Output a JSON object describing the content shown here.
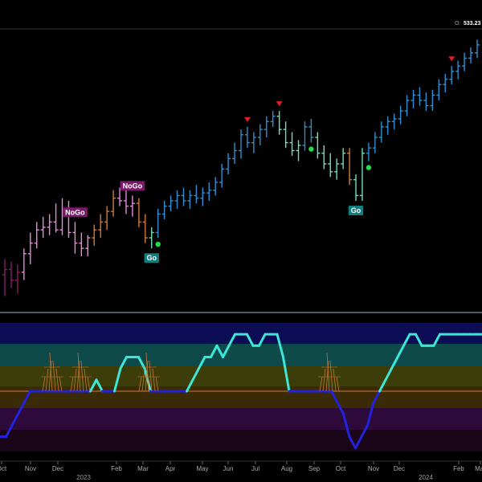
{
  "header": {
    "ohlc_label": "O:",
    "ohlc_value": "533.23"
  },
  "colors": {
    "background": "#000000",
    "go_strong": "#2f8fd0",
    "go_weak": "#6fe0b4",
    "nogo_weak": "#d07a36",
    "nogo_strong": "#e58ad6",
    "nogo_deep": "#8a1a6a",
    "oscillator_high": "#3ee6d6",
    "oscillator_low": "#2222dd",
    "zero_line": "#d07a36",
    "buy_dot": "#22dd44",
    "sell_triangle": "#e02020",
    "label_nogo_bg": "#7a1a6a",
    "label_go_bg": "#137d7d"
  },
  "chart_data": {
    "type": "bar",
    "x_labels": [
      "Oct",
      "Nov",
      "Dec",
      "Feb",
      "Mar",
      "Apr",
      "May",
      "Jun",
      "Jul",
      "Aug",
      "Sep",
      "Oct",
      "Nov",
      "Dec",
      "Feb",
      "Mar"
    ],
    "year_labels": [
      "2023",
      "2024"
    ],
    "price_bars": [
      {
        "o": 0.1,
        "h": 0.16,
        "l": 0.02,
        "c": 0.12,
        "color": "nogo_deep"
      },
      {
        "o": 0.12,
        "h": 0.15,
        "l": 0.05,
        "c": 0.08,
        "color": "nogo_deep"
      },
      {
        "o": 0.08,
        "h": 0.14,
        "l": 0.03,
        "c": 0.11,
        "color": "nogo_deep"
      },
      {
        "o": 0.11,
        "h": 0.2,
        "l": 0.08,
        "c": 0.18,
        "color": "nogo_strong"
      },
      {
        "o": 0.18,
        "h": 0.26,
        "l": 0.14,
        "c": 0.22,
        "color": "nogo_strong"
      },
      {
        "o": 0.22,
        "h": 0.3,
        "l": 0.2,
        "c": 0.27,
        "color": "nogo_strong"
      },
      {
        "o": 0.27,
        "h": 0.32,
        "l": 0.24,
        "c": 0.28,
        "color": "nogo_strong"
      },
      {
        "o": 0.28,
        "h": 0.33,
        "l": 0.25,
        "c": 0.3,
        "color": "nogo_strong"
      },
      {
        "o": 0.3,
        "h": 0.37,
        "l": 0.26,
        "c": 0.27,
        "color": "nogo_strong"
      },
      {
        "o": 0.27,
        "h": 0.39,
        "l": 0.25,
        "c": 0.33,
        "color": "nogo_strong"
      },
      {
        "o": 0.33,
        "h": 0.38,
        "l": 0.24,
        "c": 0.26,
        "color": "nogo_strong"
      },
      {
        "o": 0.26,
        "h": 0.3,
        "l": 0.18,
        "c": 0.22,
        "color": "nogo_strong"
      },
      {
        "o": 0.22,
        "h": 0.26,
        "l": 0.17,
        "c": 0.2,
        "color": "nogo_strong"
      },
      {
        "o": 0.2,
        "h": 0.25,
        "l": 0.17,
        "c": 0.24,
        "color": "nogo_strong"
      },
      {
        "o": 0.24,
        "h": 0.29,
        "l": 0.21,
        "c": 0.27,
        "color": "nogo_weak"
      },
      {
        "o": 0.27,
        "h": 0.33,
        "l": 0.24,
        "c": 0.3,
        "color": "nogo_weak"
      },
      {
        "o": 0.3,
        "h": 0.36,
        "l": 0.27,
        "c": 0.34,
        "color": "nogo_weak"
      },
      {
        "o": 0.34,
        "h": 0.42,
        "l": 0.32,
        "c": 0.39,
        "color": "nogo_weak"
      },
      {
        "o": 0.39,
        "h": 0.43,
        "l": 0.36,
        "c": 0.38,
        "color": "nogo_strong"
      },
      {
        "o": 0.38,
        "h": 0.42,
        "l": 0.33,
        "c": 0.36,
        "color": "nogo_strong"
      },
      {
        "o": 0.36,
        "h": 0.4,
        "l": 0.32,
        "c": 0.37,
        "color": "nogo_strong"
      },
      {
        "o": 0.37,
        "h": 0.39,
        "l": 0.28,
        "c": 0.3,
        "color": "nogo_weak"
      },
      {
        "o": 0.3,
        "h": 0.33,
        "l": 0.22,
        "c": 0.24,
        "color": "nogo_weak"
      },
      {
        "o": 0.24,
        "h": 0.28,
        "l": 0.2,
        "c": 0.26,
        "color": "go_weak"
      },
      {
        "o": 0.26,
        "h": 0.35,
        "l": 0.24,
        "c": 0.33,
        "color": "go_strong"
      },
      {
        "o": 0.33,
        "h": 0.38,
        "l": 0.31,
        "c": 0.36,
        "color": "go_strong"
      },
      {
        "o": 0.36,
        "h": 0.4,
        "l": 0.34,
        "c": 0.38,
        "color": "go_strong"
      },
      {
        "o": 0.38,
        "h": 0.42,
        "l": 0.35,
        "c": 0.4,
        "color": "go_strong"
      },
      {
        "o": 0.4,
        "h": 0.43,
        "l": 0.36,
        "c": 0.38,
        "color": "go_strong"
      },
      {
        "o": 0.38,
        "h": 0.42,
        "l": 0.35,
        "c": 0.4,
        "color": "go_strong"
      },
      {
        "o": 0.4,
        "h": 0.44,
        "l": 0.37,
        "c": 0.39,
        "color": "go_strong"
      },
      {
        "o": 0.39,
        "h": 0.43,
        "l": 0.36,
        "c": 0.41,
        "color": "go_strong"
      },
      {
        "o": 0.41,
        "h": 0.45,
        "l": 0.38,
        "c": 0.42,
        "color": "go_strong"
      },
      {
        "o": 0.42,
        "h": 0.47,
        "l": 0.4,
        "c": 0.45,
        "color": "go_strong"
      },
      {
        "o": 0.45,
        "h": 0.52,
        "l": 0.43,
        "c": 0.5,
        "color": "go_strong"
      },
      {
        "o": 0.5,
        "h": 0.56,
        "l": 0.48,
        "c": 0.54,
        "color": "go_strong"
      },
      {
        "o": 0.54,
        "h": 0.6,
        "l": 0.52,
        "c": 0.57,
        "color": "go_strong"
      },
      {
        "o": 0.57,
        "h": 0.65,
        "l": 0.54,
        "c": 0.63,
        "color": "go_strong"
      },
      {
        "o": 0.63,
        "h": 0.66,
        "l": 0.58,
        "c": 0.6,
        "color": "go_strong"
      },
      {
        "o": 0.6,
        "h": 0.64,
        "l": 0.56,
        "c": 0.62,
        "color": "go_strong"
      },
      {
        "o": 0.62,
        "h": 0.67,
        "l": 0.59,
        "c": 0.65,
        "color": "go_strong"
      },
      {
        "o": 0.65,
        "h": 0.7,
        "l": 0.62,
        "c": 0.68,
        "color": "go_strong"
      },
      {
        "o": 0.68,
        "h": 0.72,
        "l": 0.66,
        "c": 0.7,
        "color": "go_strong"
      },
      {
        "o": 0.7,
        "h": 0.72,
        "l": 0.63,
        "c": 0.65,
        "color": "go_weak"
      },
      {
        "o": 0.65,
        "h": 0.68,
        "l": 0.58,
        "c": 0.6,
        "color": "go_weak"
      },
      {
        "o": 0.6,
        "h": 0.64,
        "l": 0.55,
        "c": 0.57,
        "color": "go_weak"
      },
      {
        "o": 0.57,
        "h": 0.61,
        "l": 0.53,
        "c": 0.59,
        "color": "go_weak"
      },
      {
        "o": 0.59,
        "h": 0.68,
        "l": 0.57,
        "c": 0.66,
        "color": "go_strong"
      },
      {
        "o": 0.66,
        "h": 0.69,
        "l": 0.6,
        "c": 0.62,
        "color": "go_strong"
      },
      {
        "o": 0.62,
        "h": 0.64,
        "l": 0.54,
        "c": 0.56,
        "color": "go_weak"
      },
      {
        "o": 0.56,
        "h": 0.59,
        "l": 0.5,
        "c": 0.52,
        "color": "go_weak"
      },
      {
        "o": 0.52,
        "h": 0.56,
        "l": 0.47,
        "c": 0.49,
        "color": "go_weak"
      },
      {
        "o": 0.49,
        "h": 0.54,
        "l": 0.46,
        "c": 0.52,
        "color": "go_weak"
      },
      {
        "o": 0.52,
        "h": 0.58,
        "l": 0.5,
        "c": 0.56,
        "color": "go_weak"
      },
      {
        "o": 0.56,
        "h": 0.58,
        "l": 0.44,
        "c": 0.46,
        "color": "nogo_weak"
      },
      {
        "o": 0.46,
        "h": 0.48,
        "l": 0.38,
        "c": 0.4,
        "color": "go_weak"
      },
      {
        "o": 0.4,
        "h": 0.58,
        "l": 0.38,
        "c": 0.56,
        "color": "go_weak"
      },
      {
        "o": 0.56,
        "h": 0.6,
        "l": 0.53,
        "c": 0.58,
        "color": "go_strong"
      },
      {
        "o": 0.58,
        "h": 0.64,
        "l": 0.56,
        "c": 0.62,
        "color": "go_strong"
      },
      {
        "o": 0.62,
        "h": 0.68,
        "l": 0.6,
        "c": 0.66,
        "color": "go_strong"
      },
      {
        "o": 0.66,
        "h": 0.7,
        "l": 0.63,
        "c": 0.68,
        "color": "go_strong"
      },
      {
        "o": 0.68,
        "h": 0.71,
        "l": 0.65,
        "c": 0.69,
        "color": "go_strong"
      },
      {
        "o": 0.69,
        "h": 0.74,
        "l": 0.67,
        "c": 0.72,
        "color": "go_strong"
      },
      {
        "o": 0.72,
        "h": 0.78,
        "l": 0.7,
        "c": 0.76,
        "color": "go_strong"
      },
      {
        "o": 0.76,
        "h": 0.8,
        "l": 0.73,
        "c": 0.78,
        "color": "go_strong"
      },
      {
        "o": 0.78,
        "h": 0.81,
        "l": 0.74,
        "c": 0.76,
        "color": "go_strong"
      },
      {
        "o": 0.76,
        "h": 0.79,
        "l": 0.72,
        "c": 0.74,
        "color": "go_strong"
      },
      {
        "o": 0.74,
        "h": 0.8,
        "l": 0.72,
        "c": 0.78,
        "color": "go_strong"
      },
      {
        "o": 0.78,
        "h": 0.84,
        "l": 0.76,
        "c": 0.82,
        "color": "go_strong"
      },
      {
        "o": 0.82,
        "h": 0.86,
        "l": 0.79,
        "c": 0.84,
        "color": "go_strong"
      },
      {
        "o": 0.84,
        "h": 0.89,
        "l": 0.82,
        "c": 0.87,
        "color": "go_strong"
      },
      {
        "o": 0.87,
        "h": 0.91,
        "l": 0.84,
        "c": 0.89,
        "color": "go_strong"
      },
      {
        "o": 0.89,
        "h": 0.94,
        "l": 0.87,
        "c": 0.92,
        "color": "go_strong"
      },
      {
        "o": 0.92,
        "h": 0.96,
        "l": 0.9,
        "c": 0.94,
        "color": "go_strong"
      },
      {
        "o": 0.94,
        "h": 0.99,
        "l": 0.92,
        "c": 0.97,
        "color": "go_strong"
      }
    ],
    "labels": [
      {
        "text": "NoGo",
        "bar": 11,
        "above": true,
        "kind": "nogo"
      },
      {
        "text": "NoGo",
        "bar": 20,
        "above": true,
        "kind": "nogo"
      },
      {
        "text": "Go",
        "bar": 23,
        "above": false,
        "kind": "go"
      },
      {
        "text": "Go",
        "bar": 55,
        "above": false,
        "kind": "go"
      }
    ],
    "sell_signals": [
      38,
      43,
      70
    ],
    "buy_signals": [
      24,
      48,
      57
    ],
    "oscillator": {
      "zero_level": 0.0,
      "range": [
        -6,
        6
      ],
      "values": [
        -4,
        -4,
        -3,
        -2,
        -1,
        0,
        0,
        0,
        0,
        0,
        0,
        0,
        0,
        0,
        0,
        0,
        1,
        0,
        0,
        0,
        2,
        3,
        3,
        3,
        2,
        0,
        0,
        0,
        -0.0,
        0,
        0,
        0,
        1,
        2,
        3,
        3,
        4,
        3,
        4,
        5,
        5,
        5,
        4,
        4,
        5,
        5,
        5,
        3,
        0,
        0,
        0,
        0,
        0,
        0,
        0,
        0,
        -1,
        -2,
        -4,
        -5,
        -4,
        -3,
        -1,
        0,
        1,
        2,
        3,
        4,
        5,
        5,
        4,
        4,
        4,
        5,
        5,
        5,
        5,
        5,
        5,
        5,
        5
      ],
      "colors_by_value": "positive_strong=oscillator_high, below_zero=oscillator_low"
    }
  }
}
